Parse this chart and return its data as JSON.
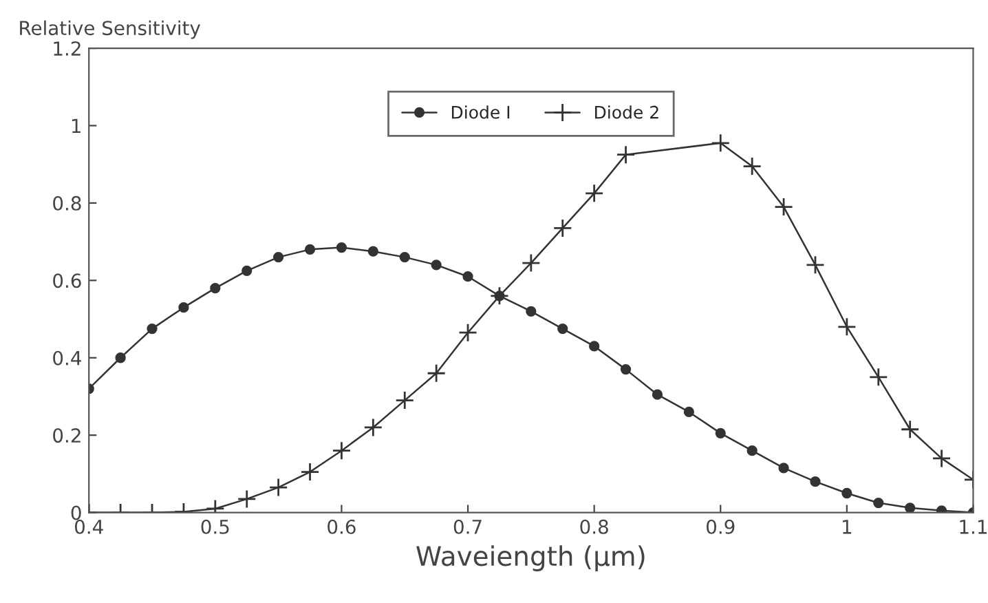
{
  "chart_data": {
    "type": "line",
    "ylabel": "Relative Sensitivity",
    "xlabel": "Waveiength (µm)",
    "x": [
      0.4,
      0.425,
      0.45,
      0.475,
      0.5,
      0.525,
      0.55,
      0.575,
      0.6,
      0.625,
      0.65,
      0.675,
      0.7,
      0.725,
      0.75,
      0.775,
      0.8,
      0.825,
      0.85,
      0.875,
      0.9,
      0.925,
      0.95,
      0.975,
      1.0,
      1.025,
      1.05,
      1.075,
      1.1
    ],
    "series": [
      {
        "name": "Diode I",
        "color": "#333333",
        "marker": "circle",
        "values": [
          0.32,
          0.4,
          0.475,
          0.53,
          0.58,
          0.625,
          0.66,
          0.68,
          0.685,
          0.675,
          0.66,
          0.64,
          0.61,
          0.56,
          0.52,
          0.475,
          0.43,
          0.37,
          0.305,
          0.26,
          0.205,
          0.16,
          0.115,
          0.08,
          0.05,
          0.025,
          0.012,
          0.005,
          0.0
        ]
      },
      {
        "name": "Diode 2",
        "color": "#333333",
        "marker": "cross",
        "values": [
          0,
          0,
          0,
          0.002,
          0.01,
          0.035,
          0.065,
          0.105,
          0.16,
          0.22,
          0.29,
          0.36,
          0.465,
          0.56,
          0.645,
          0.735,
          0.825,
          0.925,
          null,
          null,
          0.955,
          0.895,
          0.79,
          0.64,
          0.48,
          0.35,
          0.215,
          0.14,
          0.085
        ]
      }
    ],
    "xlim": [
      0.4,
      1.1
    ],
    "xticks": [
      0.4,
      0.5,
      0.6,
      0.7,
      0.8,
      0.9,
      1,
      1.1
    ],
    "ylim": [
      0,
      1.2
    ],
    "yticks": [
      0,
      0.2,
      0.4,
      0.6,
      0.8,
      1,
      1.2
    ],
    "grid": false,
    "legend": "top"
  }
}
